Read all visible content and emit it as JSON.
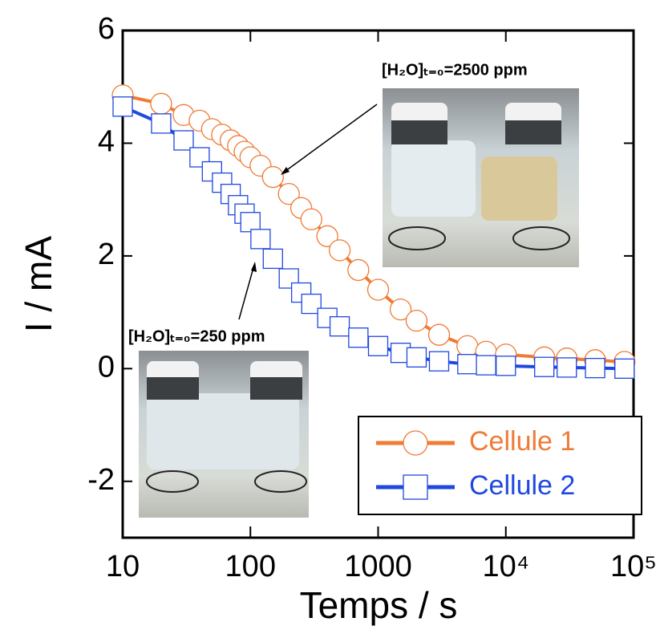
{
  "chart_data": {
    "type": "line",
    "x_label": "Temps / s",
    "y_label": "I / mA",
    "x": [
      10,
      20,
      30,
      40,
      50,
      60,
      70,
      80,
      90,
      100,
      120,
      150,
      200,
      250,
      300,
      400,
      500,
      700,
      1000,
      1500,
      2000,
      3000,
      5000,
      7000,
      10000,
      20000,
      30000,
      50000,
      85000
    ],
    "series": [
      {
        "name": "Cellule 1",
        "color": "#ef7b35",
        "marker": "circle",
        "values": [
          4.85,
          4.7,
          4.5,
          4.4,
          4.25,
          4.15,
          4.05,
          3.95,
          3.85,
          3.75,
          3.6,
          3.4,
          3.1,
          2.85,
          2.65,
          2.35,
          2.1,
          1.75,
          1.4,
          1.05,
          0.85,
          0.6,
          0.4,
          0.3,
          0.25,
          0.2,
          0.18,
          0.15,
          0.12
        ]
      },
      {
        "name": "Cellule 2",
        "color": "#1f48e0",
        "marker": "square",
        "values": [
          4.65,
          4.35,
          4.05,
          3.75,
          3.5,
          3.3,
          3.1,
          2.9,
          2.75,
          2.6,
          2.3,
          1.95,
          1.6,
          1.35,
          1.15,
          0.9,
          0.75,
          0.55,
          0.4,
          0.28,
          0.2,
          0.13,
          0.08,
          0.06,
          0.05,
          0.03,
          0.02,
          0.01,
          0.0
        ]
      }
    ],
    "xscale": "log",
    "xlim": [
      10,
      100000
    ],
    "xticks": [
      10,
      100,
      1000,
      {
        "value": 10000,
        "label": "10⁴"
      },
      {
        "value": 100000,
        "label": "10⁵"
      }
    ],
    "ylim": [
      -3,
      6
    ],
    "yticks": [
      -2,
      0,
      2,
      4,
      6
    ],
    "legend": "lower right",
    "annotations": [
      "[H₂O]ₜ₌₀=2500 ppm",
      "[H₂O]ₜ₌₀=250 ppm"
    ]
  }
}
